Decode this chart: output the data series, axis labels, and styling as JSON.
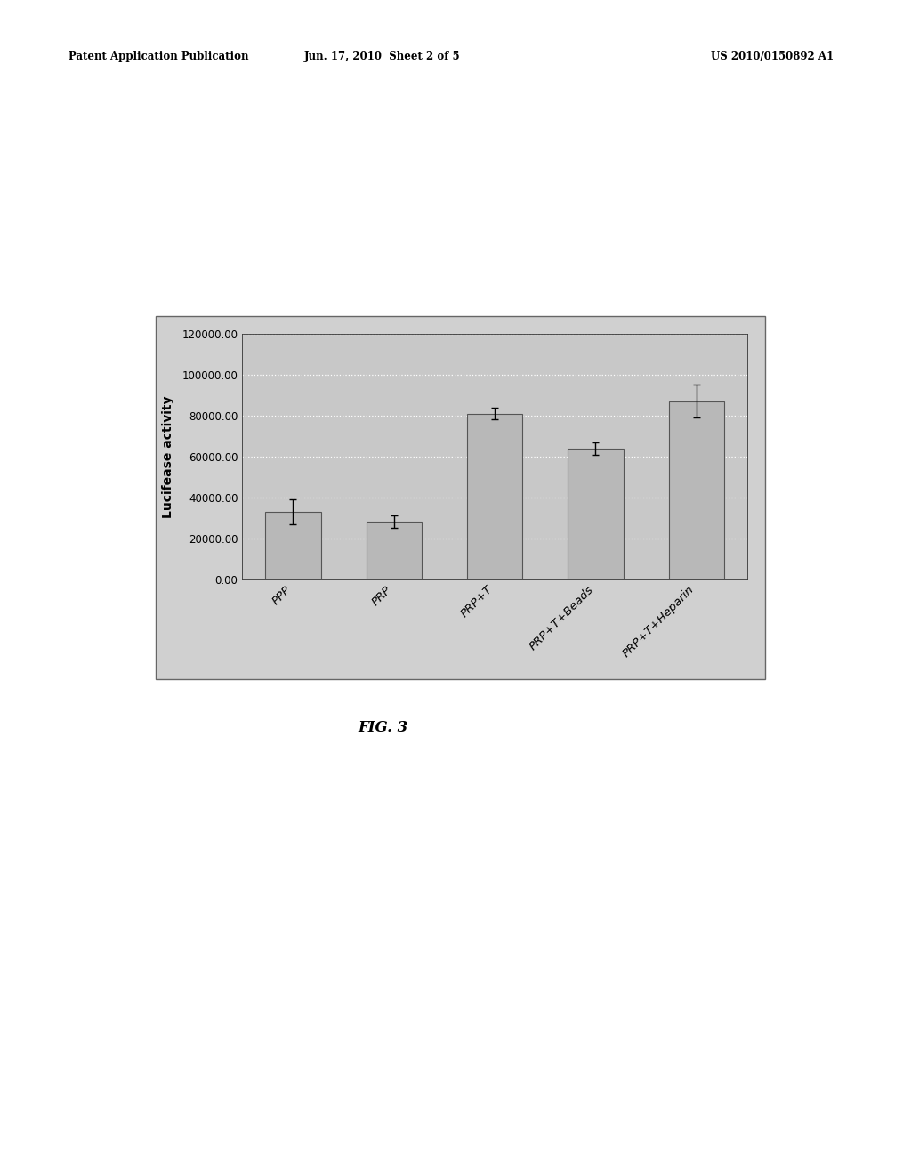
{
  "categories": [
    "PPP",
    "PRP",
    "PRP+T",
    "PRP+T+Beads",
    "PRP+T+Heparin"
  ],
  "values": [
    33000,
    28000,
    81000,
    64000,
    87000
  ],
  "errors": [
    6000,
    3000,
    3000,
    3000,
    8000
  ],
  "ylabel": "Lucifease activity",
  "ylim": [
    0,
    120000
  ],
  "yticks": [
    0,
    20000,
    40000,
    60000,
    80000,
    100000,
    120000
  ],
  "ytick_labels": [
    "0.00",
    "20000.00",
    "40000.00",
    "60000.00",
    "80000.00",
    "100000.00",
    "120000.00"
  ],
  "bar_color": "#b8b8b8",
  "bar_edge_color": "#555555",
  "plot_area_color": "#c8c8c8",
  "outer_box_color": "#aaaaaa",
  "fig_caption": "FIG. 3",
  "header_left": "Patent Application Publication",
  "header_center": "Jun. 17, 2010  Sheet 2 of 5",
  "header_right": "US 2010/0150892 A1",
  "bar_width": 0.55,
  "grid_color": "#ffffff",
  "outer_frame_color": "#888888",
  "outer_frame_bg": "#d0d0d0"
}
